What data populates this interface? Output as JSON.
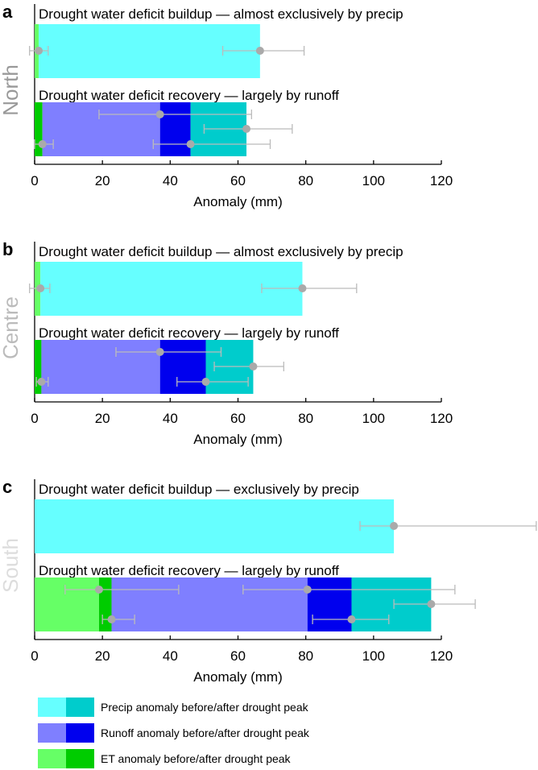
{
  "chart_data": {
    "type": "bar",
    "orientation": "horizontal-stacked",
    "xlabel": "Anomaly (mm)",
    "xlim": [
      0,
      120
    ],
    "xticks": [
      "0",
      "20",
      "40",
      "60",
      "80",
      "100",
      "120"
    ],
    "colors": {
      "precip_before": "#66ffff",
      "precip_after": "#00cccc",
      "runoff_before": "#7f7fff",
      "runoff_after": "#0000ee",
      "et_before": "#66ff66",
      "et_after": "#00cc00",
      "marker": "#aaaaaa",
      "errorbar": "#bbbbbb"
    },
    "legend": [
      {
        "label": "Precip anomaly before/after drought peak",
        "colors": [
          "precip_before",
          "precip_after"
        ]
      },
      {
        "label": "Runoff anomaly before/after drought peak",
        "colors": [
          "runoff_before",
          "runoff_after"
        ]
      },
      {
        "label": "ET anomaly before/after drought peak",
        "colors": [
          "et_before",
          "et_after"
        ]
      }
    ],
    "panels": [
      {
        "letter": "a",
        "region": "North",
        "region_color": "#999999",
        "buildup": {
          "title": "Drought water deficit buildup — almost exclusively by precip",
          "segments": [
            {
              "var": "et_before",
              "from": 0,
              "to": 1.2
            },
            {
              "var": "precip_before",
              "from": 1.2,
              "to": 66.5
            }
          ],
          "points": [
            {
              "row": 1,
              "value": 1.2,
              "lo": -1.5,
              "hi": 4
            },
            {
              "row": 1,
              "value": 66.5,
              "lo": 55.5,
              "hi": 79.5
            }
          ]
        },
        "recovery": {
          "title": "Drought water deficit recovery — largely by runoff",
          "segments": [
            {
              "var": "et_after",
              "from": 0,
              "to": 2.3
            },
            {
              "var": "runoff_before",
              "from": 2.3,
              "to": 37
            },
            {
              "var": "runoff_after",
              "from": 37,
              "to": 46
            },
            {
              "var": "precip_after",
              "from": 46,
              "to": 62.5
            }
          ],
          "points": [
            {
              "row": 0,
              "value": 37,
              "lo": 19,
              "hi": 64
            },
            {
              "row": 1,
              "value": 62.5,
              "lo": 50,
              "hi": 76
            },
            {
              "row": 2,
              "value": 2.3,
              "lo": 0,
              "hi": 5.5
            },
            {
              "row": 2,
              "value": 46,
              "lo": 35,
              "hi": 69.5
            }
          ]
        }
      },
      {
        "letter": "b",
        "region": "Centre",
        "region_color": "#bbbbbb",
        "buildup": {
          "title": "Drought water deficit buildup — almost exclusively by precip",
          "segments": [
            {
              "var": "et_before",
              "from": 0,
              "to": 1.7
            },
            {
              "var": "precip_before",
              "from": 1.7,
              "to": 79
            }
          ],
          "points": [
            {
              "row": 1,
              "value": 1.7,
              "lo": -1.5,
              "hi": 4.5
            },
            {
              "row": 1,
              "value": 79,
              "lo": 67,
              "hi": 95
            }
          ]
        },
        "recovery": {
          "title": "Drought water deficit recovery — largely by runoff",
          "segments": [
            {
              "var": "et_after",
              "from": 0,
              "to": 2
            },
            {
              "var": "runoff_before",
              "from": 2,
              "to": 37
            },
            {
              "var": "runoff_after",
              "from": 37,
              "to": 50.5
            },
            {
              "var": "precip_after",
              "from": 50.5,
              "to": 64.5
            }
          ],
          "points": [
            {
              "row": 0,
              "value": 37,
              "lo": 24,
              "hi": 55
            },
            {
              "row": 1,
              "value": 64.5,
              "lo": 53,
              "hi": 73.5
            },
            {
              "row": 2,
              "value": 2,
              "lo": 0.5,
              "hi": 4
            },
            {
              "row": 2,
              "value": 50.5,
              "lo": 42,
              "hi": 63
            }
          ]
        }
      },
      {
        "letter": "c",
        "region": "South",
        "region_color": "#dddddd",
        "buildup": {
          "title": "Drought water deficit buildup — exclusively by precip",
          "segments": [
            {
              "var": "precip_before",
              "from": 0,
              "to": 106
            }
          ],
          "points": [
            {
              "row": 1,
              "value": 106,
              "lo": 96,
              "hi": 148
            }
          ]
        },
        "recovery": {
          "title": "Drought water deficit recovery — largely by runoff",
          "segments": [
            {
              "var": "et_before",
              "from": 0,
              "to": 19
            },
            {
              "var": "et_after",
              "from": 19,
              "to": 22.7
            },
            {
              "var": "runoff_before",
              "from": 22.7,
              "to": 80.5
            },
            {
              "var": "runoff_after",
              "from": 80.5,
              "to": 93.5
            },
            {
              "var": "precip_after",
              "from": 93.5,
              "to": 117
            }
          ],
          "points": [
            {
              "row": 0,
              "value": 19,
              "lo": 9,
              "hi": 42.5
            },
            {
              "row": 0,
              "value": 80.5,
              "lo": 61.5,
              "hi": 124
            },
            {
              "row": 1,
              "value": 117,
              "lo": 106,
              "hi": 130
            },
            {
              "row": 2,
              "value": 22.7,
              "lo": 20,
              "hi": 29.5
            },
            {
              "row": 2,
              "value": 93.5,
              "lo": 82,
              "hi": 104.5
            }
          ]
        }
      }
    ]
  }
}
